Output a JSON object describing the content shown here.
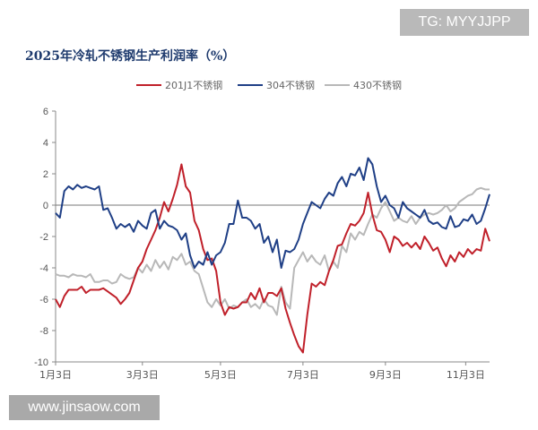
{
  "watermarks": {
    "top": "TG: MYYJJPP",
    "bottom": "www.jinsaow.com"
  },
  "colors": {
    "s201": "#c0202a",
    "s304": "#1f3f86",
    "s430": "#b8b8b8",
    "axis": "#888888",
    "zero": "#777777"
  },
  "chart_data": {
    "type": "line",
    "title": "2025年冷轧不锈钢生产利润率（%）",
    "xlabel": "",
    "ylabel": "",
    "ylim": [
      -10,
      6
    ],
    "yticks": [
      -10,
      -8,
      -6,
      -4,
      -2,
      0,
      2,
      4,
      6
    ],
    "xlim": [
      0,
      100
    ],
    "xticks": [
      {
        "x": 0,
        "label": "1月3日"
      },
      {
        "x": 20,
        "label": "3月3日"
      },
      {
        "x": 38,
        "label": "5月3日"
      },
      {
        "x": 57,
        "label": "7月3日"
      },
      {
        "x": 76,
        "label": "9月3日"
      },
      {
        "x": 94.5,
        "label": "11月3日"
      }
    ],
    "legend_position": "top",
    "series": [
      {
        "name": "201J1不锈钢",
        "color_key": "s201",
        "points": [
          [
            0,
            -6
          ],
          [
            1,
            -6.5
          ],
          [
            2,
            -5.8
          ],
          [
            3,
            -5.4
          ],
          [
            4,
            -5.4
          ],
          [
            5,
            -5.4
          ],
          [
            6,
            -5.2
          ],
          [
            7,
            -5.6
          ],
          [
            8,
            -5.4
          ],
          [
            9,
            -5.4
          ],
          [
            10,
            -5.4
          ],
          [
            11,
            -5.3
          ],
          [
            12,
            -5.5
          ],
          [
            13,
            -5.7
          ],
          [
            14,
            -5.9
          ],
          [
            15,
            -6.3
          ],
          [
            16,
            -6.0
          ],
          [
            17,
            -5.6
          ],
          [
            18,
            -4.8
          ],
          [
            19,
            -4.0
          ],
          [
            20,
            -3.6
          ],
          [
            21,
            -2.8
          ],
          [
            22,
            -2.2
          ],
          [
            23,
            -1.6
          ],
          [
            24,
            -0.8
          ],
          [
            25,
            0.2
          ],
          [
            26,
            -0.4
          ],
          [
            27,
            0.4
          ],
          [
            28,
            1.3
          ],
          [
            29,
            2.6
          ],
          [
            30,
            1.2
          ],
          [
            31,
            0.8
          ],
          [
            32,
            -1.0
          ],
          [
            33,
            -1.6
          ],
          [
            34,
            -2.8
          ],
          [
            35,
            -3.5
          ],
          [
            36,
            -3.4
          ],
          [
            37,
            -4.2
          ],
          [
            38,
            -6.2
          ],
          [
            39,
            -7.0
          ],
          [
            40,
            -6.5
          ],
          [
            41,
            -6.6
          ],
          [
            42,
            -6.5
          ],
          [
            43,
            -6.2
          ],
          [
            44,
            -6.2
          ],
          [
            45,
            -5.6
          ],
          [
            46,
            -6.0
          ],
          [
            47,
            -5.3
          ],
          [
            48,
            -6.2
          ],
          [
            49,
            -5.6
          ],
          [
            50,
            -5.6
          ],
          [
            51,
            -5.8
          ],
          [
            52,
            -5.3
          ],
          [
            53,
            -6.6
          ],
          [
            54,
            -7.5
          ],
          [
            55,
            -8.3
          ],
          [
            56,
            -9.0
          ],
          [
            57,
            -9.4
          ],
          [
            58,
            -7.0
          ],
          [
            59,
            -5.0
          ],
          [
            60,
            -5.2
          ],
          [
            61,
            -4.9
          ],
          [
            62,
            -5.1
          ],
          [
            63,
            -4.2
          ],
          [
            64,
            -3.5
          ],
          [
            65,
            -2.6
          ],
          [
            66,
            -2.5
          ],
          [
            67,
            -1.8
          ],
          [
            68,
            -1.2
          ],
          [
            69,
            -1.3
          ],
          [
            70,
            -1.0
          ],
          [
            71,
            -0.5
          ],
          [
            72,
            0.8
          ],
          [
            73,
            -0.6
          ],
          [
            74,
            -1.6
          ],
          [
            75,
            -1.7
          ],
          [
            76,
            -2.2
          ],
          [
            77,
            -3.0
          ],
          [
            78,
            -2.0
          ],
          [
            79,
            -2.2
          ],
          [
            80,
            -2.6
          ],
          [
            81,
            -2.4
          ],
          [
            82,
            -2.7
          ],
          [
            83,
            -2.4
          ],
          [
            84,
            -2.8
          ],
          [
            85,
            -2.0
          ],
          [
            86,
            -2.4
          ],
          [
            87,
            -2.9
          ],
          [
            88,
            -2.7
          ],
          [
            89,
            -3.4
          ],
          [
            90,
            -3.9
          ],
          [
            91,
            -3.2
          ],
          [
            92,
            -3.6
          ],
          [
            93,
            -3.0
          ],
          [
            94,
            -3.3
          ],
          [
            95,
            -2.8
          ],
          [
            96,
            -3.1
          ],
          [
            97,
            -2.8
          ],
          [
            98,
            -2.9
          ],
          [
            99,
            -1.5
          ],
          [
            100,
            -2.3
          ]
        ]
      },
      {
        "name": "304不锈钢",
        "color_key": "s304",
        "points": [
          [
            0,
            -0.5
          ],
          [
            1,
            -0.8
          ],
          [
            2,
            0.9
          ],
          [
            3,
            1.2
          ],
          [
            4,
            1.0
          ],
          [
            5,
            1.3
          ],
          [
            6,
            1.1
          ],
          [
            7,
            1.2
          ],
          [
            8,
            1.1
          ],
          [
            9,
            1.0
          ],
          [
            10,
            1.2
          ],
          [
            11,
            -0.3
          ],
          [
            12,
            -0.2
          ],
          [
            13,
            -0.8
          ],
          [
            14,
            -1.5
          ],
          [
            15,
            -1.2
          ],
          [
            16,
            -1.4
          ],
          [
            17,
            -1.2
          ],
          [
            18,
            -1.7
          ],
          [
            19,
            -1.0
          ],
          [
            20,
            -1.3
          ],
          [
            21,
            -1.5
          ],
          [
            22,
            -0.5
          ],
          [
            23,
            -0.3
          ],
          [
            24,
            -1.5
          ],
          [
            25,
            -1.0
          ],
          [
            26,
            -1.3
          ],
          [
            27,
            -1.4
          ],
          [
            28,
            -1.6
          ],
          [
            29,
            -2.2
          ],
          [
            30,
            -1.8
          ],
          [
            31,
            -3.2
          ],
          [
            32,
            -4.0
          ],
          [
            33,
            -3.6
          ],
          [
            34,
            -3.8
          ],
          [
            35,
            -3.0
          ],
          [
            36,
            -3.8
          ],
          [
            37,
            -3.2
          ],
          [
            38,
            -3.0
          ],
          [
            39,
            -2.4
          ],
          [
            40,
            -1.2
          ],
          [
            41,
            -1.2
          ],
          [
            42,
            0.3
          ],
          [
            43,
            -0.8
          ],
          [
            44,
            -0.8
          ],
          [
            45,
            -1.0
          ],
          [
            46,
            -1.5
          ],
          [
            47,
            -1.2
          ],
          [
            48,
            -2.4
          ],
          [
            49,
            -2.0
          ],
          [
            50,
            -3.0
          ],
          [
            51,
            -2.2
          ],
          [
            52,
            -4.0
          ],
          [
            53,
            -2.9
          ],
          [
            54,
            -3.0
          ],
          [
            55,
            -2.8
          ],
          [
            56,
            -2.2
          ],
          [
            57,
            -1.2
          ],
          [
            58,
            -0.5
          ],
          [
            59,
            0.2
          ],
          [
            60,
            0.0
          ],
          [
            61,
            -0.2
          ],
          [
            62,
            0.4
          ],
          [
            63,
            0.8
          ],
          [
            64,
            0.6
          ],
          [
            65,
            1.4
          ],
          [
            66,
            1.8
          ],
          [
            67,
            1.2
          ],
          [
            68,
            2.0
          ],
          [
            69,
            1.9
          ],
          [
            70,
            2.4
          ],
          [
            71,
            1.6
          ],
          [
            72,
            3.0
          ],
          [
            73,
            2.6
          ],
          [
            74,
            1.2
          ],
          [
            75,
            0.2
          ],
          [
            76,
            0.6
          ],
          [
            77,
            0.0
          ],
          [
            78,
            -0.2
          ],
          [
            79,
            -0.8
          ],
          [
            80,
            0.2
          ],
          [
            81,
            -0.2
          ],
          [
            82,
            -0.4
          ],
          [
            83,
            -0.6
          ],
          [
            84,
            -0.8
          ],
          [
            85,
            -0.3
          ],
          [
            86,
            -1.0
          ],
          [
            87,
            -1.2
          ],
          [
            88,
            -1.1
          ],
          [
            89,
            -1.4
          ],
          [
            90,
            -1.5
          ],
          [
            91,
            -0.7
          ],
          [
            92,
            -1.4
          ],
          [
            93,
            -1.3
          ],
          [
            94,
            -0.9
          ],
          [
            95,
            -1.0
          ],
          [
            96,
            -0.6
          ],
          [
            97,
            -1.2
          ],
          [
            98,
            -1.0
          ],
          [
            99,
            -0.2
          ],
          [
            100,
            0.7
          ]
        ]
      },
      {
        "name": "430不锈钢",
        "color_key": "s430",
        "points": [
          [
            0,
            -4.4
          ],
          [
            1,
            -4.5
          ],
          [
            2,
            -4.5
          ],
          [
            3,
            -4.6
          ],
          [
            4,
            -4.4
          ],
          [
            5,
            -4.5
          ],
          [
            6,
            -4.5
          ],
          [
            7,
            -4.6
          ],
          [
            8,
            -4.4
          ],
          [
            9,
            -4.9
          ],
          [
            10,
            -4.9
          ],
          [
            11,
            -4.8
          ],
          [
            12,
            -4.8
          ],
          [
            13,
            -5.0
          ],
          [
            14,
            -4.9
          ],
          [
            15,
            -4.4
          ],
          [
            16,
            -4.6
          ],
          [
            17,
            -4.7
          ],
          [
            18,
            -4.6
          ],
          [
            19,
            -4.0
          ],
          [
            20,
            -4.3
          ],
          [
            21,
            -3.8
          ],
          [
            22,
            -4.2
          ],
          [
            23,
            -3.5
          ],
          [
            24,
            -4.0
          ],
          [
            25,
            -3.6
          ],
          [
            26,
            -4.1
          ],
          [
            27,
            -3.3
          ],
          [
            28,
            -3.5
          ],
          [
            29,
            -3.1
          ],
          [
            30,
            -3.8
          ],
          [
            31,
            -3.6
          ],
          [
            32,
            -4.2
          ],
          [
            33,
            -4.4
          ],
          [
            34,
            -5.3
          ],
          [
            35,
            -6.2
          ],
          [
            36,
            -6.5
          ],
          [
            37,
            -6.0
          ],
          [
            38,
            -6.4
          ],
          [
            39,
            -6.0
          ],
          [
            40,
            -6.6
          ],
          [
            41,
            -6.4
          ],
          [
            42,
            -6.5
          ],
          [
            43,
            -6.2
          ],
          [
            44,
            -6.0
          ],
          [
            45,
            -6.5
          ],
          [
            46,
            -6.3
          ],
          [
            47,
            -6.6
          ],
          [
            48,
            -6.0
          ],
          [
            49,
            -6.4
          ],
          [
            50,
            -6.5
          ],
          [
            51,
            -7.0
          ],
          [
            52,
            -5.2
          ],
          [
            53,
            -6.2
          ],
          [
            54,
            -6.6
          ],
          [
            55,
            -4.0
          ],
          [
            56,
            -3.5
          ],
          [
            57,
            -3.0
          ],
          [
            58,
            -3.6
          ],
          [
            59,
            -3.2
          ],
          [
            60,
            -3.6
          ],
          [
            61,
            -3.8
          ],
          [
            62,
            -3.2
          ],
          [
            63,
            -4.2
          ],
          [
            64,
            -3.6
          ],
          [
            65,
            -4.0
          ],
          [
            66,
            -2.6
          ],
          [
            67,
            -3.0
          ],
          [
            68,
            -1.8
          ],
          [
            69,
            -2.2
          ],
          [
            70,
            -1.7
          ],
          [
            71,
            -1.9
          ],
          [
            72,
            -1.2
          ],
          [
            73,
            -0.6
          ],
          [
            74,
            -0.8
          ],
          [
            75,
            -0.2
          ],
          [
            76,
            0.2
          ],
          [
            77,
            -0.4
          ],
          [
            78,
            -1.0
          ],
          [
            79,
            -0.8
          ],
          [
            80,
            -1.0
          ],
          [
            81,
            -1.1
          ],
          [
            82,
            -0.7
          ],
          [
            83,
            -1.2
          ],
          [
            84,
            -0.8
          ],
          [
            85,
            -0.6
          ],
          [
            86,
            -0.5
          ],
          [
            87,
            -0.6
          ],
          [
            88,
            -0.5
          ],
          [
            89,
            -0.3
          ],
          [
            90,
            0.0
          ],
          [
            91,
            -0.4
          ],
          [
            92,
            -0.2
          ],
          [
            93,
            0.2
          ],
          [
            94,
            0.4
          ],
          [
            95,
            0.6
          ],
          [
            96,
            0.7
          ],
          [
            97,
            1.0
          ],
          [
            98,
            1.1
          ],
          [
            99,
            1.0
          ],
          [
            100,
            1.0
          ]
        ]
      }
    ]
  }
}
